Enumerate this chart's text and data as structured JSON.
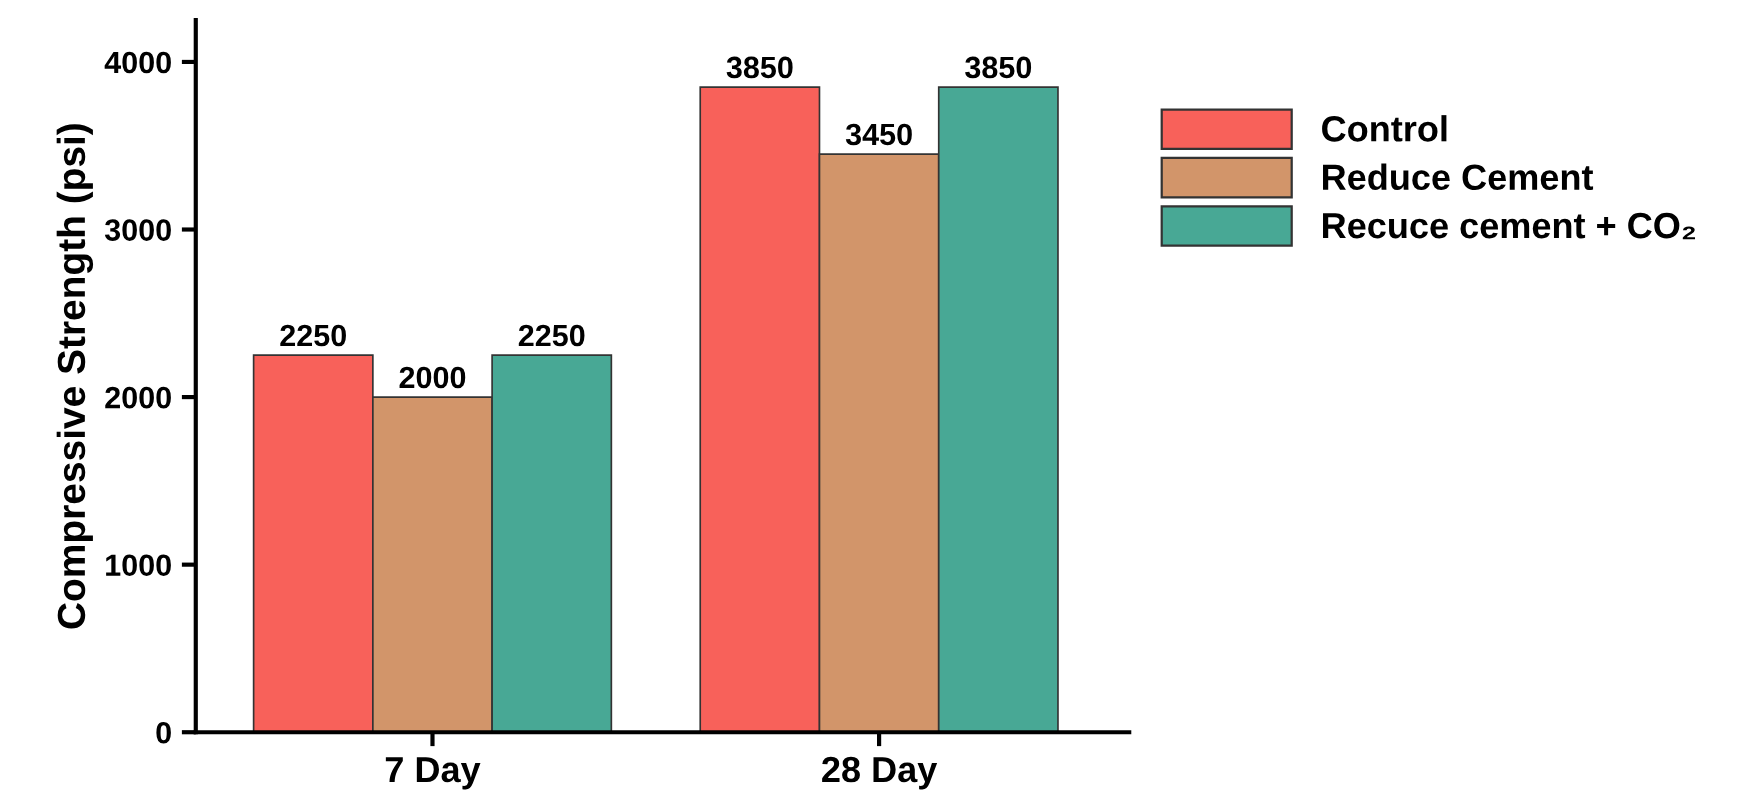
{
  "chart_data": {
    "type": "bar",
    "ylabel": "Compressive Strength (psi)",
    "categories": [
      "7 Day",
      "28 Day"
    ],
    "series": [
      {
        "name": "Control",
        "color": "#f8615a",
        "values": [
          2250,
          3850
        ]
      },
      {
        "name": "Reduce Cement",
        "color": "#d2956a",
        "values": [
          2000,
          3450
        ]
      },
      {
        "name": "Recuce cement + CO₂",
        "color": "#48a895",
        "values": [
          2250,
          3850
        ]
      }
    ],
    "ylim": [
      0,
      4250
    ],
    "yticks": [
      0,
      1000,
      2000,
      3000,
      4000
    ],
    "data_labels": true,
    "legend": "right",
    "grid": false
  }
}
